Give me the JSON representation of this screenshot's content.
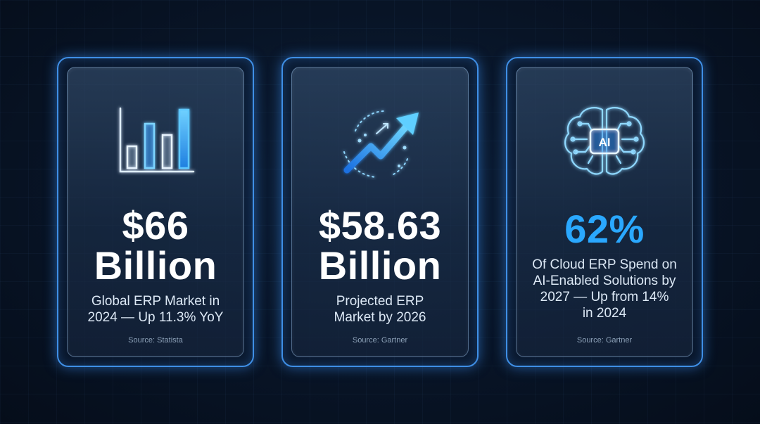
{
  "cards": [
    {
      "icon": "bar-chart-icon",
      "value": "$66",
      "unit": "Billion",
      "description_lines": [
        "Global ERP Market in",
        "2024 — Up 11.3% YoY"
      ],
      "source": "Source: Statista"
    },
    {
      "icon": "trend-arrow-icon",
      "value": "$58.63",
      "unit": "Billion",
      "description_lines": [
        "Projected ERP",
        "Market by 2026"
      ],
      "source": "Source: Gartner"
    },
    {
      "icon": "ai-brain-icon",
      "icon_text": "AI",
      "value": "62%",
      "description_lines": [
        "Of Cloud ERP Spend on",
        "AI-Enabled Solutions by",
        "2027 — Up from 14%",
        "in 2024"
      ],
      "source": "Source: Gartner"
    }
  ],
  "colors": {
    "accent": "#2aa8ff",
    "glow": "#3f8fe6",
    "background": "#081426"
  }
}
